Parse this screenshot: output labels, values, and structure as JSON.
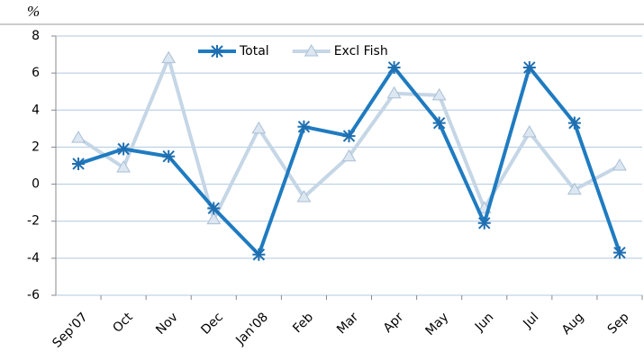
{
  "chart_data": {
    "type": "line",
    "ylabel": "%",
    "categories": [
      "Sep'07",
      "Oct",
      "Nov",
      "Dec",
      "Jan'08",
      "Feb",
      "Mar",
      "Apr",
      "May",
      "Jun",
      "Jul",
      "Aug",
      "Sep"
    ],
    "series": [
      {
        "name": "Total",
        "color": "#1f7bc0",
        "marker": "asterisk",
        "values": [
          1.1,
          1.9,
          1.5,
          -1.3,
          -3.8,
          3.1,
          2.6,
          6.3,
          3.3,
          -2.1,
          6.3,
          3.3,
          -3.7
        ]
      },
      {
        "name": "Excl Fish",
        "color": "#c5d6e6",
        "marker": "triangle",
        "values": [
          2.5,
          0.9,
          6.8,
          -1.9,
          3.0,
          -0.7,
          1.5,
          4.9,
          4.8,
          -1.3,
          2.8,
          -0.3,
          1.0
        ]
      }
    ],
    "ylim": [
      -6,
      8
    ],
    "yticks": [
      -6,
      -4,
      -2,
      0,
      2,
      4,
      6,
      8
    ],
    "grid": true,
    "legend": "top"
  }
}
